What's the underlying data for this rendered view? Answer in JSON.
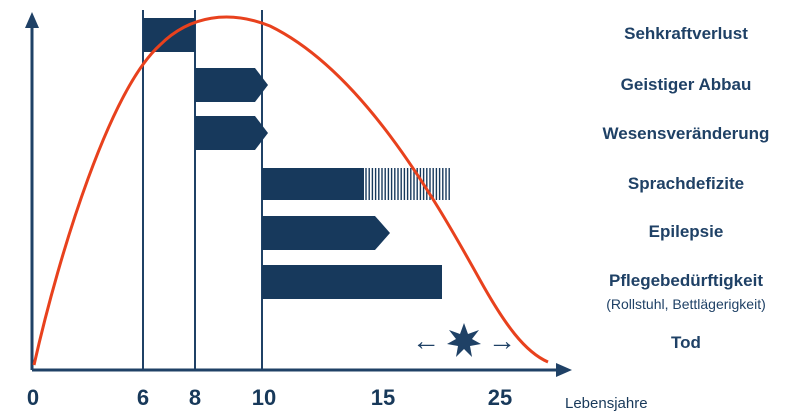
{
  "colors": {
    "bar": "#17395c",
    "curve": "#e8411d",
    "axis": "#1f4166",
    "text": "#1f4166"
  },
  "x_axis": {
    "ticks": [
      "0",
      "6",
      "8",
      "10",
      "15",
      "25"
    ],
    "unit": "Lebensjahre"
  },
  "stage_lines": [
    "6",
    "8",
    "10"
  ],
  "symptoms": [
    {
      "label": "Sehkraftverlust",
      "sublabel": ""
    },
    {
      "label": "Geistiger Abbau",
      "sublabel": ""
    },
    {
      "label": "Wesensveränderung",
      "sublabel": ""
    },
    {
      "label": "Sprachdefizite",
      "sublabel": ""
    },
    {
      "label": "Epilepsie",
      "sublabel": ""
    },
    {
      "label": "Pflegebedürftigkeit",
      "sublabel": "(Rollstuhl, Bettlägerigkeit)"
    },
    {
      "label": "Tod",
      "sublabel": ""
    }
  ],
  "death_marker": {
    "icon": "star-burst-icon",
    "arrows": [
      "←",
      "→"
    ]
  }
}
